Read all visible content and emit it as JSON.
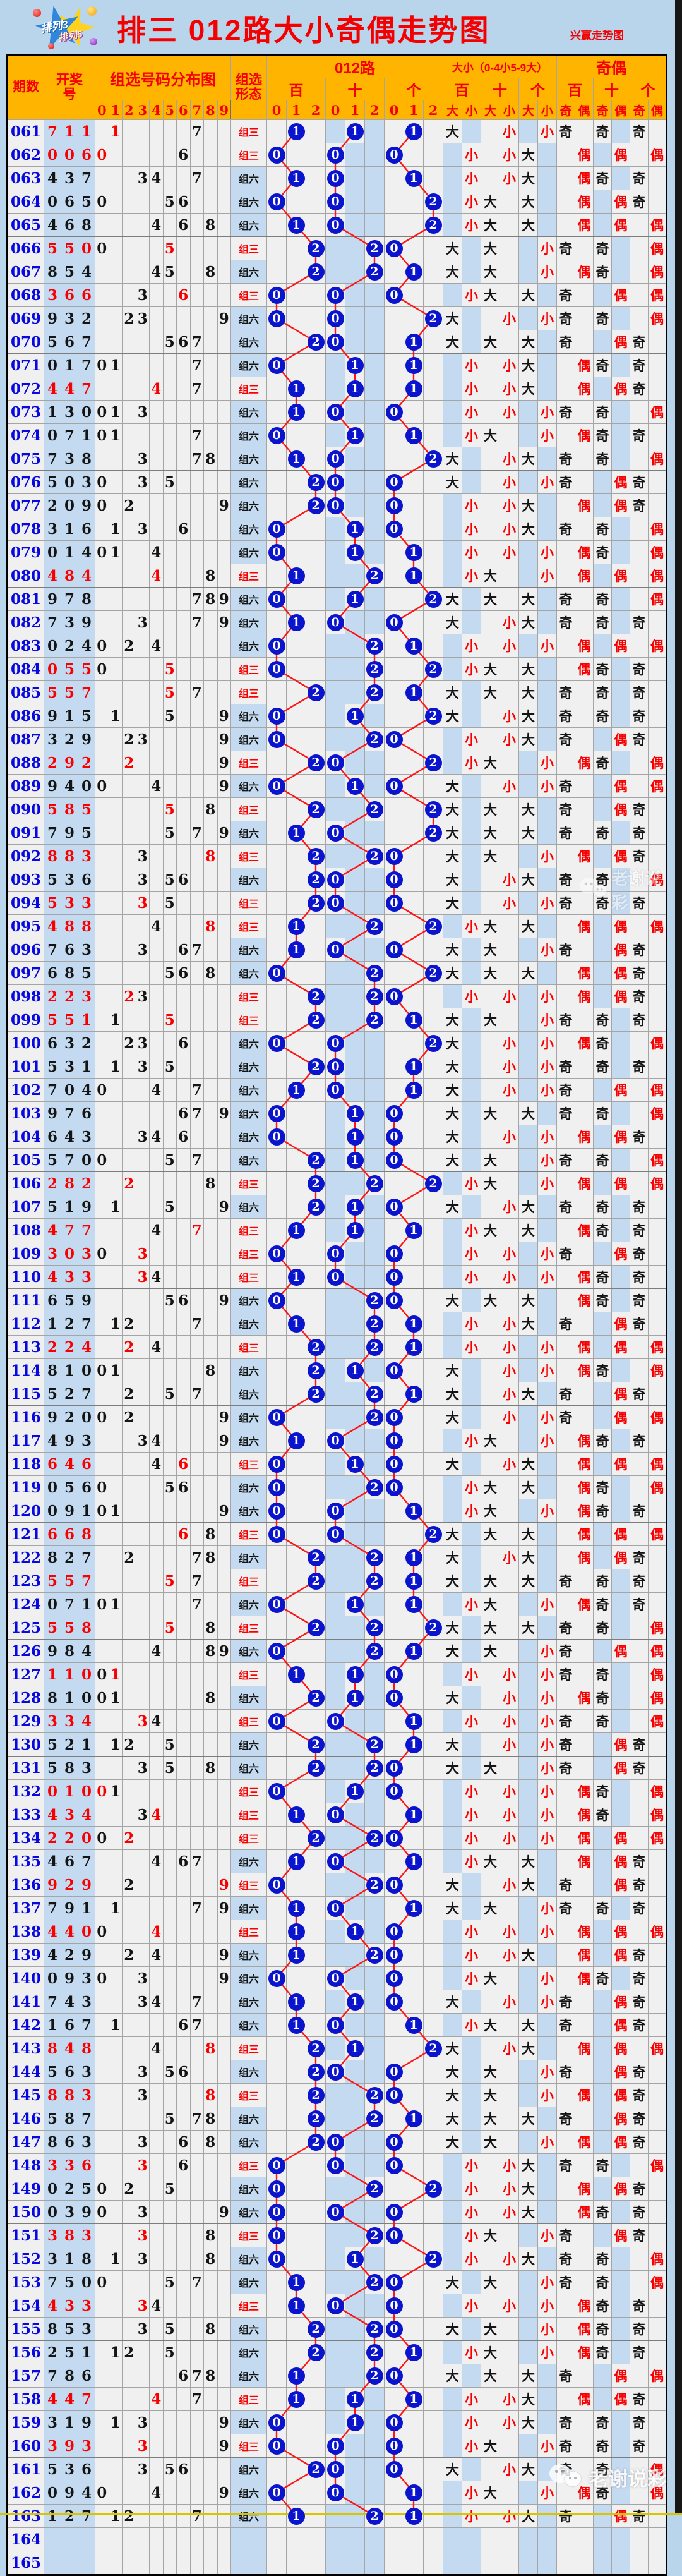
{
  "page": {
    "title": "排三 012路大小奇偶走势图",
    "subtitle": "兴赢走势图",
    "watermark": "老谢说彩",
    "logo_top": "排列3",
    "logo_bottom": "排列5"
  },
  "table_header": {
    "period": "期数",
    "draw_line1": "开奖",
    "draw_line2": "号",
    "distribution": "组选号码分布图",
    "digits": [
      "0",
      "1",
      "2",
      "3",
      "4",
      "5",
      "6",
      "7",
      "8",
      "9"
    ],
    "form_line1": "组选",
    "form_line2": "形态",
    "road": "012路",
    "size": "大小（0-4小5-9大）",
    "parity": "奇偶",
    "positions": [
      "百",
      "十",
      "个"
    ],
    "road_vals": [
      "0",
      "1",
      "2"
    ],
    "size_vals": [
      "大",
      "小"
    ],
    "parity_vals": [
      "奇",
      "偶"
    ]
  },
  "labels": {
    "form3": "组三",
    "form6": "组六",
    "big": "大",
    "small": "小",
    "odd": "奇",
    "even": "偶"
  },
  "colors": {
    "page_bg": "#b8d5ec",
    "header_bg": "#ffb400",
    "accent_red": "#f40000",
    "band_blue": "#c3daf0",
    "cell_bg": "#f0f0f0",
    "period_blue": "#0808e0",
    "circle_blue": "#0a14cc",
    "line_red": "#ff1414",
    "grid": "#a5a5a5"
  },
  "chart_data": {
    "type": "table",
    "title": "排三 012路大小奇偶走势图",
    "columns": [
      "period",
      "draw",
      "form"
    ],
    "rows": [
      [
        "061",
        "711",
        "组三"
      ],
      [
        "062",
        "006",
        "组三"
      ],
      [
        "063",
        "437",
        "组六"
      ],
      [
        "064",
        "065",
        "组六"
      ],
      [
        "065",
        "468",
        "组六"
      ],
      [
        "066",
        "550",
        "组三"
      ],
      [
        "067",
        "854",
        "组六"
      ],
      [
        "068",
        "366",
        "组三"
      ],
      [
        "069",
        "932",
        "组六"
      ],
      [
        "070",
        "567",
        "组六"
      ],
      [
        "071",
        "017",
        "组六"
      ],
      [
        "072",
        "447",
        "组三"
      ],
      [
        "073",
        "130",
        "组六"
      ],
      [
        "074",
        "071",
        "组六"
      ],
      [
        "075",
        "738",
        "组六"
      ],
      [
        "076",
        "503",
        "组六"
      ],
      [
        "077",
        "209",
        "组六"
      ],
      [
        "078",
        "316",
        "组六"
      ],
      [
        "079",
        "014",
        "组六"
      ],
      [
        "080",
        "484",
        "组三"
      ],
      [
        "081",
        "978",
        "组六"
      ],
      [
        "082",
        "739",
        "组六"
      ],
      [
        "083",
        "024",
        "组六"
      ],
      [
        "084",
        "055",
        "组三"
      ],
      [
        "085",
        "557",
        "组三"
      ],
      [
        "086",
        "915",
        "组六"
      ],
      [
        "087",
        "329",
        "组六"
      ],
      [
        "088",
        "292",
        "组三"
      ],
      [
        "089",
        "940",
        "组六"
      ],
      [
        "090",
        "585",
        "组三"
      ],
      [
        "091",
        "795",
        "组六"
      ],
      [
        "092",
        "883",
        "组三"
      ],
      [
        "093",
        "536",
        "组六"
      ],
      [
        "094",
        "533",
        "组三"
      ],
      [
        "095",
        "488",
        "组三"
      ],
      [
        "096",
        "763",
        "组六"
      ],
      [
        "097",
        "685",
        "组六"
      ],
      [
        "098",
        "223",
        "组三"
      ],
      [
        "099",
        "551",
        "组三"
      ],
      [
        "100",
        "632",
        "组六"
      ],
      [
        "101",
        "531",
        "组六"
      ],
      [
        "102",
        "704",
        "组六"
      ],
      [
        "103",
        "976",
        "组六"
      ],
      [
        "104",
        "643",
        "组六"
      ],
      [
        "105",
        "570",
        "组六"
      ],
      [
        "106",
        "282",
        "组三"
      ],
      [
        "107",
        "519",
        "组六"
      ],
      [
        "108",
        "477",
        "组三"
      ],
      [
        "109",
        "303",
        "组三"
      ],
      [
        "110",
        "433",
        "组三"
      ],
      [
        "111",
        "659",
        "组六"
      ],
      [
        "112",
        "127",
        "组六"
      ],
      [
        "113",
        "224",
        "组三"
      ],
      [
        "114",
        "810",
        "组六"
      ],
      [
        "115",
        "527",
        "组六"
      ],
      [
        "116",
        "920",
        "组六"
      ],
      [
        "117",
        "493",
        "组六"
      ],
      [
        "118",
        "646",
        "组三"
      ],
      [
        "119",
        "056",
        "组六"
      ],
      [
        "120",
        "091",
        "组六"
      ],
      [
        "121",
        "668",
        "组三"
      ],
      [
        "122",
        "827",
        "组六"
      ],
      [
        "123",
        "557",
        "组三"
      ],
      [
        "124",
        "071",
        "组六"
      ],
      [
        "125",
        "558",
        "组三"
      ],
      [
        "126",
        "984",
        "组六"
      ],
      [
        "127",
        "110",
        "组三"
      ],
      [
        "128",
        "810",
        "组六"
      ],
      [
        "129",
        "334",
        "组三"
      ],
      [
        "130",
        "521",
        "组六"
      ],
      [
        "131",
        "583",
        "组六"
      ],
      [
        "132",
        "010",
        "组三"
      ],
      [
        "133",
        "434",
        "组三"
      ],
      [
        "134",
        "220",
        "组三"
      ],
      [
        "135",
        "467",
        "组六"
      ],
      [
        "136",
        "929",
        "组三"
      ],
      [
        "137",
        "791",
        "组六"
      ],
      [
        "138",
        "440",
        "组三"
      ],
      [
        "139",
        "429",
        "组六"
      ],
      [
        "140",
        "093",
        "组六"
      ],
      [
        "141",
        "743",
        "组六"
      ],
      [
        "142",
        "167",
        "组六"
      ],
      [
        "143",
        "848",
        "组三"
      ],
      [
        "144",
        "563",
        "组六"
      ],
      [
        "145",
        "883",
        "组三"
      ],
      [
        "146",
        "587",
        "组六"
      ],
      [
        "147",
        "863",
        "组六"
      ],
      [
        "148",
        "336",
        "组三"
      ],
      [
        "149",
        "025",
        "组六"
      ],
      [
        "150",
        "039",
        "组六"
      ],
      [
        "151",
        "383",
        "组三"
      ],
      [
        "152",
        "318",
        "组六"
      ],
      [
        "153",
        "750",
        "组六"
      ],
      [
        "154",
        "433",
        "组三"
      ],
      [
        "155",
        "853",
        "组六"
      ],
      [
        "156",
        "251",
        "组六"
      ],
      [
        "157",
        "786",
        "组六"
      ],
      [
        "158",
        "447",
        "组三"
      ],
      [
        "159",
        "319",
        "组六"
      ],
      [
        "160",
        "393",
        "组三"
      ],
      [
        "161",
        "536",
        "组六"
      ],
      [
        "162",
        "094",
        "组六"
      ],
      [
        "163",
        "127",
        "组六"
      ]
    ],
    "empty_periods": [
      "164",
      "165"
    ]
  }
}
